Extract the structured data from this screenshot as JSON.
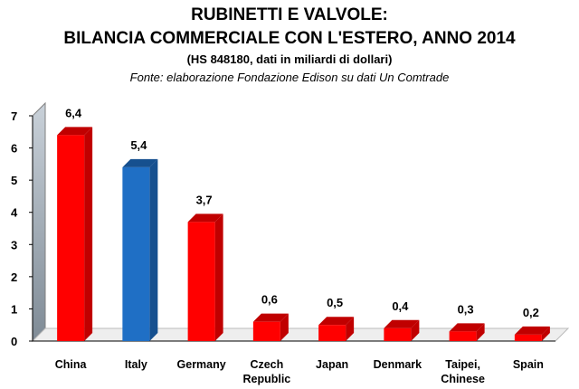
{
  "chart_data": {
    "type": "bar",
    "title": "RUBINETTI E VALVOLE:",
    "title_line2": "BILANCIA COMMERCIALE CON L'ESTERO, ANNO 2014",
    "subtitle": "(HS 848180, dati in miliardi di dollari)",
    "source": "Fonte: elaborazione Fondazione Edison su dati Un Comtrade",
    "categories": [
      "China",
      "Italy",
      "Germany",
      "Czech Republic",
      "Japan",
      "Denmark",
      "Taipei, Chinese",
      "Spain"
    ],
    "category_lines": [
      [
        "China"
      ],
      [
        "Italy"
      ],
      [
        "Germany"
      ],
      [
        "Czech",
        "Republic"
      ],
      [
        "Japan"
      ],
      [
        "Denmark"
      ],
      [
        "Taipei,",
        "Chinese"
      ],
      [
        "Spain"
      ]
    ],
    "values": [
      6.4,
      5.4,
      3.7,
      0.6,
      0.5,
      0.4,
      0.3,
      0.2
    ],
    "data_labels": [
      "6,4",
      "5,4",
      "3,7",
      "0,6",
      "0,5",
      "0,4",
      "0,3",
      "0,2"
    ],
    "highlight_category": "Italy",
    "ylim": [
      0,
      7
    ],
    "yticks": [
      0,
      1,
      2,
      3,
      4,
      5,
      6,
      7
    ],
    "xlabel": "",
    "ylabel": "",
    "legend": "none",
    "grid": false,
    "colors": {
      "bar": "#ff0000",
      "bar_dark": "#c00000",
      "highlight": "#1f6fc5",
      "highlight_dark": "#16508f",
      "wall_top": "#c9d1d9",
      "wall_bottom": "#7f8b96"
    }
  }
}
